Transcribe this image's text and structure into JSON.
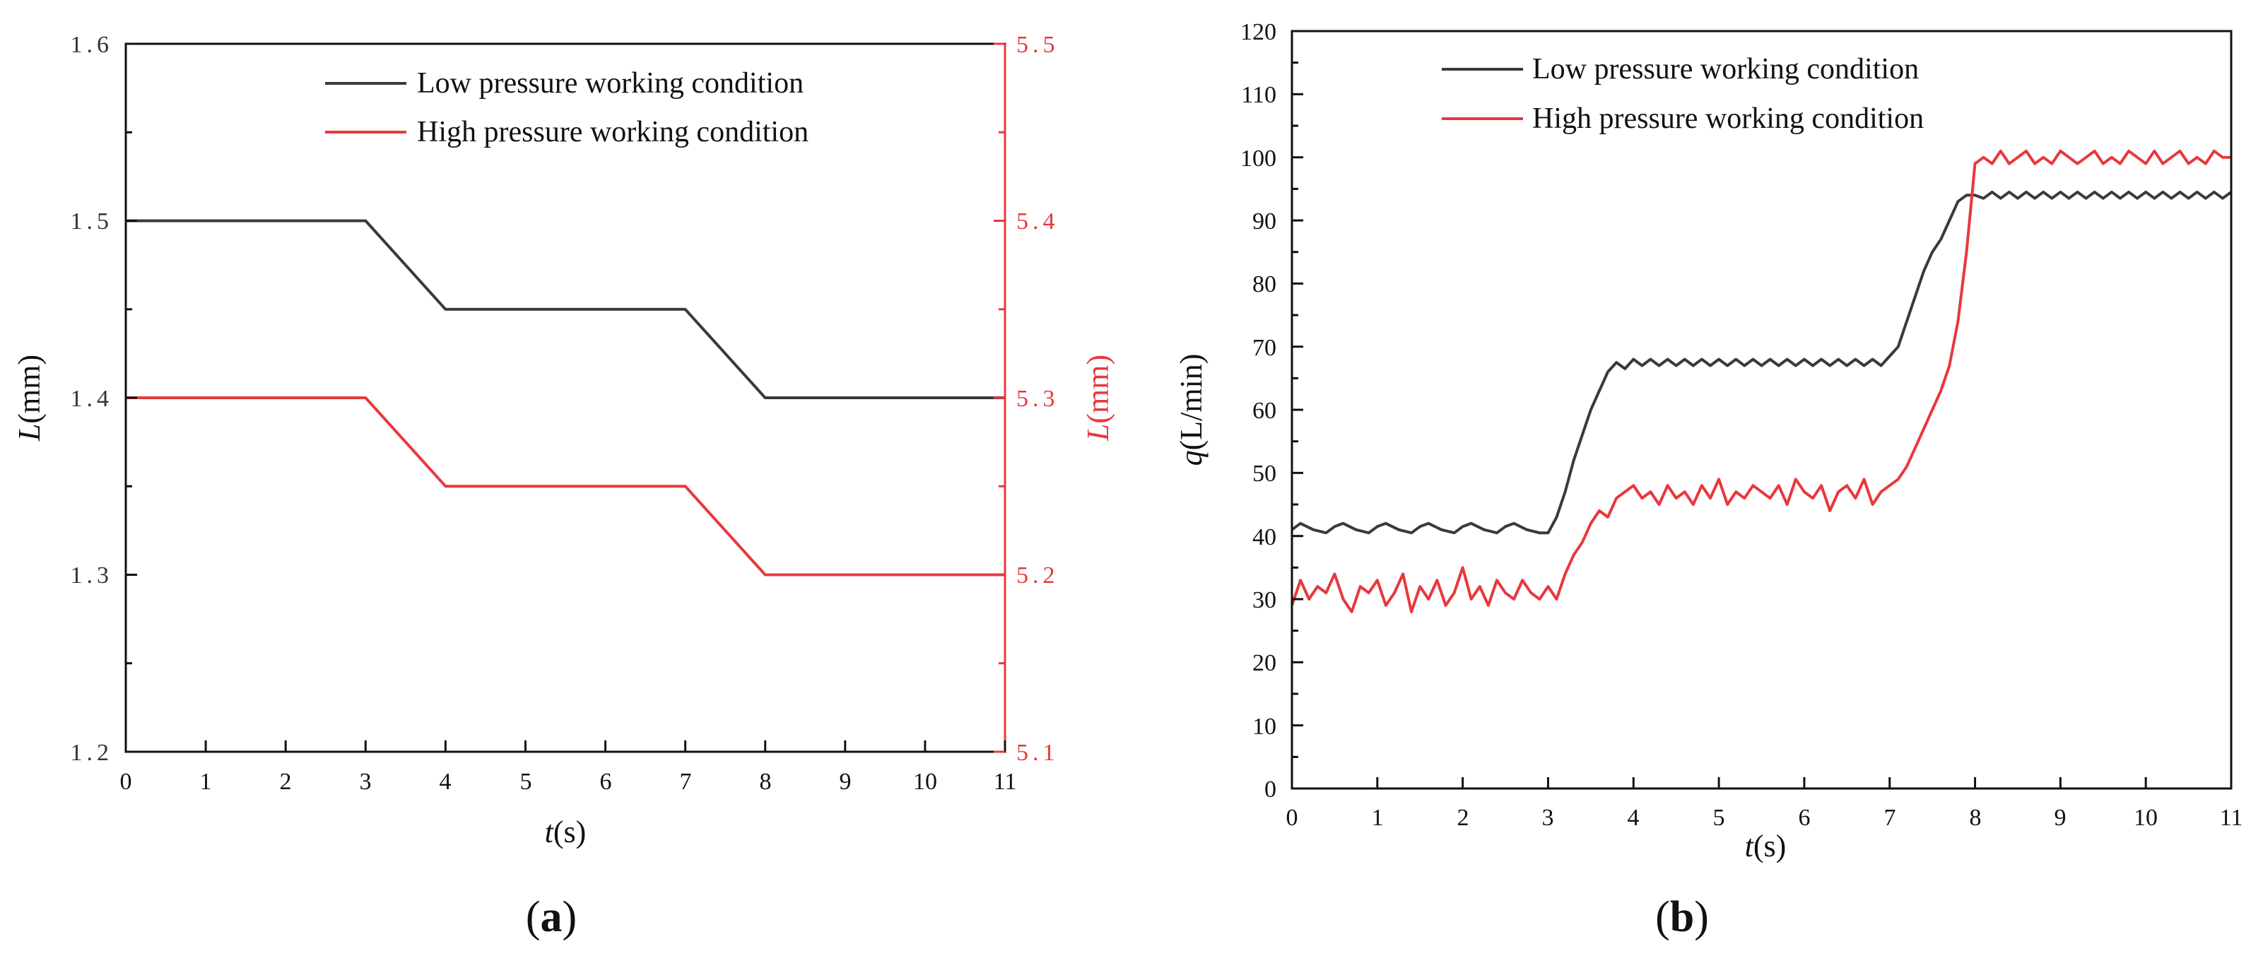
{
  "colors": {
    "low": "#3a3a3a",
    "high": "#e8383d",
    "axis": "#111111",
    "right_axis": "#e8383d"
  },
  "chart_data": [
    {
      "panel_label": "a",
      "type": "line",
      "xlabel_italic": "t",
      "xlabel_unit": "(s)",
      "ylabel_italic": "L",
      "ylabel_unit": "(mm)",
      "y2label_italic": "L",
      "y2label_unit": "(mm)",
      "xlim": [
        0,
        11
      ],
      "ylim": [
        1.2,
        1.6
      ],
      "y2lim": [
        5.1,
        5.5
      ],
      "x_ticks": [
        "0",
        "1",
        "2",
        "3",
        "4",
        "5",
        "6",
        "7",
        "8",
        "9",
        "10",
        "11"
      ],
      "y_ticks": [
        "1.2",
        "1.3",
        "1.4",
        "1.5",
        "1.6"
      ],
      "y2_ticks": [
        "5.1",
        "5.2",
        "5.3",
        "5.4",
        "5.5"
      ],
      "legend": [
        "Low pressure working condition",
        "High pressure working condition"
      ],
      "series": [
        {
          "name": "Low pressure working condition",
          "axis": "left",
          "x": [
            0,
            3,
            4,
            7,
            8,
            11
          ],
          "y": [
            1.5,
            1.5,
            1.45,
            1.45,
            1.4,
            1.4
          ]
        },
        {
          "name": "High pressure working condition",
          "axis": "right",
          "x": [
            0,
            3,
            4,
            7,
            8,
            11
          ],
          "y": [
            5.3,
            5.3,
            5.25,
            5.25,
            5.2,
            5.2
          ]
        }
      ]
    },
    {
      "panel_label": "b",
      "type": "line",
      "xlabel_italic": "t",
      "xlabel_unit": "(s)",
      "ylabel_italic": "q",
      "ylabel_unit": "(L/min)",
      "xlim": [
        0,
        11
      ],
      "ylim": [
        0,
        120
      ],
      "x_ticks": [
        "0",
        "1",
        "2",
        "3",
        "4",
        "5",
        "6",
        "7",
        "8",
        "9",
        "10",
        "11"
      ],
      "y_ticks": [
        "0",
        "10",
        "20",
        "30",
        "40",
        "50",
        "60",
        "70",
        "80",
        "90",
        "100",
        "110",
        "120"
      ],
      "legend": [
        "Low pressure working condition",
        "High pressure working condition"
      ],
      "series": [
        {
          "name": "Low pressure working condition",
          "x": [
            0,
            0.1,
            0.25,
            0.4,
            0.5,
            0.6,
            0.75,
            0.9,
            1.0,
            1.1,
            1.25,
            1.4,
            1.5,
            1.6,
            1.75,
            1.9,
            2.0,
            2.1,
            2.25,
            2.4,
            2.5,
            2.6,
            2.75,
            2.9,
            3.0,
            3.1,
            3.2,
            3.3,
            3.4,
            3.5,
            3.6,
            3.7,
            3.8,
            3.9,
            4.0,
            4.1,
            4.2,
            4.3,
            4.4,
            4.5,
            4.6,
            4.7,
            4.8,
            4.9,
            5.0,
            5.1,
            5.2,
            5.3,
            5.4,
            5.5,
            5.6,
            5.7,
            5.8,
            5.9,
            6.0,
            6.1,
            6.2,
            6.3,
            6.4,
            6.5,
            6.6,
            6.7,
            6.8,
            6.9,
            7.0,
            7.1,
            7.2,
            7.3,
            7.4,
            7.5,
            7.6,
            7.7,
            7.8,
            7.9,
            8.0,
            8.1,
            8.2,
            8.3,
            8.4,
            8.5,
            8.6,
            8.7,
            8.8,
            8.9,
            9.0,
            9.1,
            9.2,
            9.3,
            9.4,
            9.5,
            9.6,
            9.7,
            9.8,
            9.9,
            10.0,
            10.1,
            10.2,
            10.3,
            10.4,
            10.5,
            10.6,
            10.7,
            10.8,
            10.9,
            11.0
          ],
          "y": [
            41,
            42,
            41,
            40.5,
            41.5,
            42,
            41,
            40.5,
            41.5,
            42,
            41,
            40.5,
            41.5,
            42,
            41,
            40.5,
            41.5,
            42,
            41,
            40.5,
            41.5,
            42,
            41,
            40.5,
            40.5,
            43,
            47,
            52,
            56,
            60,
            63,
            66,
            67.5,
            66.5,
            68,
            67,
            68,
            67,
            68,
            67,
            68,
            67,
            68,
            67,
            68,
            67,
            68,
            67,
            68,
            67,
            68,
            67,
            68,
            67,
            68,
            67,
            68,
            67,
            68,
            67,
            68,
            67,
            68,
            67,
            68.5,
            70,
            74,
            78,
            82,
            85,
            87,
            90,
            93,
            94,
            94,
            93.5,
            94.5,
            93.5,
            94.5,
            93.5,
            94.5,
            93.5,
            94.5,
            93.5,
            94.5,
            93.5,
            94.5,
            93.5,
            94.5,
            93.5,
            94.5,
            93.5,
            94.5,
            93.5,
            94.5,
            93.5,
            94.5,
            93.5,
            94.5,
            93.5,
            94.5,
            93.5,
            94.5,
            93.5,
            94.5
          ]
        },
        {
          "name": "High pressure working condition",
          "x": [
            0,
            0.1,
            0.2,
            0.3,
            0.4,
            0.5,
            0.6,
            0.7,
            0.8,
            0.9,
            1.0,
            1.1,
            1.2,
            1.3,
            1.4,
            1.5,
            1.6,
            1.7,
            1.8,
            1.9,
            2.0,
            2.1,
            2.2,
            2.3,
            2.4,
            2.5,
            2.6,
            2.7,
            2.8,
            2.9,
            3.0,
            3.1,
            3.2,
            3.3,
            3.4,
            3.5,
            3.6,
            3.7,
            3.8,
            3.9,
            4.0,
            4.1,
            4.2,
            4.3,
            4.4,
            4.5,
            4.6,
            4.7,
            4.8,
            4.9,
            5.0,
            5.1,
            5.2,
            5.3,
            5.4,
            5.5,
            5.6,
            5.7,
            5.8,
            5.9,
            6.0,
            6.1,
            6.2,
            6.3,
            6.4,
            6.5,
            6.6,
            6.7,
            6.8,
            6.9,
            7.0,
            7.1,
            7.2,
            7.3,
            7.4,
            7.5,
            7.6,
            7.7,
            7.8,
            7.9,
            8.0,
            8.1,
            8.2,
            8.3,
            8.4,
            8.5,
            8.6,
            8.7,
            8.8,
            8.9,
            9.0,
            9.1,
            9.2,
            9.3,
            9.4,
            9.5,
            9.6,
            9.7,
            9.8,
            9.9,
            10.0,
            10.1,
            10.2,
            10.3,
            10.4,
            10.5,
            10.6,
            10.7,
            10.8,
            10.9,
            11.0
          ],
          "y": [
            29,
            33,
            30,
            32,
            31,
            34,
            30,
            28,
            32,
            31,
            33,
            29,
            31,
            34,
            28,
            32,
            30,
            33,
            29,
            31,
            35,
            30,
            32,
            29,
            33,
            31,
            30,
            33,
            31,
            30,
            32,
            30,
            34,
            37,
            39,
            42,
            44,
            43,
            46,
            47,
            48,
            46,
            47,
            45,
            48,
            46,
            47,
            45,
            48,
            46,
            49,
            45,
            47,
            46,
            48,
            47,
            46,
            48,
            45,
            49,
            47,
            46,
            48,
            44,
            47,
            48,
            46,
            49,
            45,
            47,
            48,
            49,
            51,
            54,
            57,
            60,
            63,
            67,
            74,
            85,
            99,
            100,
            99,
            101,
            99,
            100,
            101,
            99,
            100,
            99,
            101,
            100,
            99,
            100,
            101,
            99,
            100,
            99,
            101,
            100,
            99,
            101,
            99,
            100,
            101,
            99,
            100,
            99,
            101,
            100,
            100
          ]
        }
      ]
    }
  ]
}
